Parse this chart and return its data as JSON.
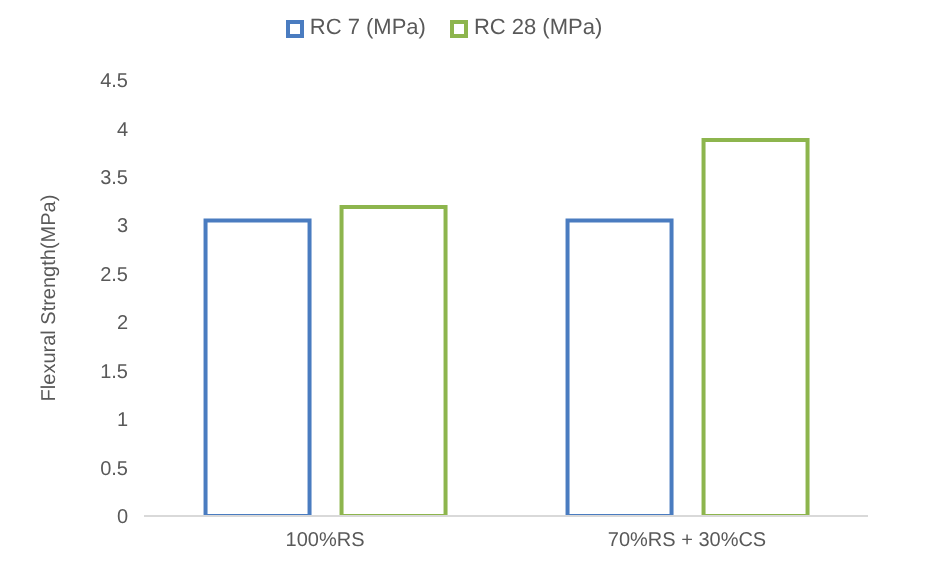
{
  "chart_data": {
    "type": "bar",
    "categories": [
      "100%RS",
      "70%RS + 30%CS"
    ],
    "ylabel": "Flexural Strength(MPa)",
    "ylim": [
      0,
      4.5
    ],
    "yticks": [
      0,
      0.5,
      1,
      1.5,
      2,
      2.5,
      3,
      3.5,
      4,
      4.5
    ],
    "grid": false,
    "legend": "top",
    "series": [
      {
        "name": "RC 7  (MPa)",
        "color": "#4a7cc0",
        "values": [
          3.05,
          3.05
        ]
      },
      {
        "name": "RC 28  (MPa)",
        "color": "#8db54d",
        "values": [
          3.19,
          3.88
        ]
      }
    ]
  }
}
